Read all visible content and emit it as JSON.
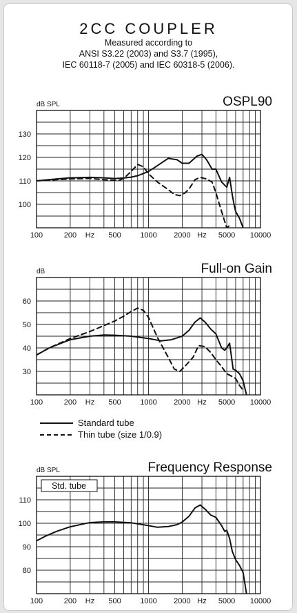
{
  "header": {
    "title": "2CC COUPLER",
    "lines": [
      "Measured according to",
      "ANSI S3.22 (2003) and S3.7 (1995),",
      "IEC 60118-7 (2005) and IEC 60318-5 (2006)."
    ]
  },
  "legend": {
    "solid": "Standard tube",
    "dashed": "Thin tube (size 1/0.9)"
  },
  "chart_data": [
    {
      "type": "line",
      "title": "OSPL90",
      "ylabel": "dB SPL",
      "xlabel": "Hz",
      "xscale": "log",
      "xlim": [
        100,
        10000
      ],
      "ylim": [
        90,
        140
      ],
      "xticks": [
        "100",
        "200",
        "Hz",
        "500",
        "1000",
        "2000",
        "Hz",
        "5000",
        "10000"
      ],
      "yticks": [
        100,
        110,
        120,
        130
      ],
      "series": [
        {
          "name": "Standard tube",
          "style": "solid",
          "x": [
            100,
            150,
            200,
            300,
            400,
            500,
            600,
            700,
            800,
            1000,
            1200,
            1500,
            1800,
            2000,
            2300,
            2700,
            3000,
            3300,
            3700,
            4000,
            4500,
            5000,
            5300,
            5600,
            5800,
            6000,
            6500,
            7000
          ],
          "y": [
            110,
            110.8,
            111.3,
            111.5,
            111.3,
            111,
            111.2,
            111.6,
            112.2,
            114,
            116.5,
            119.6,
            119,
            117.5,
            117.5,
            120.5,
            121.3,
            119,
            115,
            115,
            109.5,
            107.3,
            111.5,
            104,
            100,
            97,
            94,
            90
          ]
        },
        {
          "name": "Thin tube (size 1/0.9)",
          "style": "dashed",
          "x": [
            100,
            150,
            200,
            300,
            400,
            500,
            550,
            600,
            700,
            800,
            900,
            1000,
            1200,
            1500,
            1700,
            1900,
            2100,
            2300,
            2600,
            2900,
            3300,
            3700,
            4000,
            4300,
            4700,
            5000,
            5300,
            5500
          ],
          "y": [
            110,
            110.5,
            110.8,
            111,
            110.5,
            110.2,
            110.3,
            111,
            114,
            117,
            116,
            113,
            109.5,
            106.3,
            104.2,
            103.7,
            104.7,
            106.5,
            110.5,
            111.5,
            110.8,
            109.5,
            105,
            100,
            94,
            90,
            91,
            91
          ]
        }
      ]
    },
    {
      "type": "line",
      "title": "Full-on Gain",
      "ylabel": "dB",
      "xlabel": "Hz",
      "xscale": "log",
      "xlim": [
        100,
        10000
      ],
      "ylim": [
        20,
        70
      ],
      "xticks": [
        "100",
        "200",
        "Hz",
        "500",
        "1000",
        "2000",
        "Hz",
        "5000",
        "10000"
      ],
      "yticks": [
        30,
        40,
        50,
        60
      ],
      "series": [
        {
          "name": "Standard tube",
          "style": "solid",
          "x": [
            100,
            130,
            200,
            300,
            400,
            500,
            700,
            1000,
            1300,
            1600,
            2000,
            2300,
            2600,
            2900,
            3200,
            3600,
            4000,
            4500,
            4800,
            5000,
            5300,
            5700,
            6000,
            6500,
            7000,
            7500
          ],
          "y": [
            37,
            40,
            43.5,
            45,
            45.5,
            45.4,
            45,
            44,
            43,
            43.5,
            45,
            47.5,
            51,
            52.8,
            51,
            48,
            46,
            40,
            39,
            40,
            42,
            31,
            30.5,
            29,
            26,
            20
          ]
        },
        {
          "name": "Thin tube (size 1/0.9)",
          "style": "dashed",
          "x": [
            100,
            130,
            200,
            300,
            400,
            500,
            600,
            700,
            800,
            900,
            1000,
            1200,
            1500,
            1700,
            1900,
            2100,
            2500,
            2800,
            3200,
            3600,
            4000,
            4500,
            5000,
            5500,
            6000,
            6500,
            7000
          ],
          "y": [
            37,
            40,
            44,
            47,
            49.5,
            51.5,
            53.5,
            55.5,
            57,
            56,
            53,
            44.5,
            36,
            31,
            30,
            32,
            36,
            41,
            40.5,
            38,
            35,
            32,
            29,
            28,
            27,
            24,
            22
          ]
        }
      ]
    },
    {
      "type": "line",
      "title": "Frequency Response",
      "ylabel": "dB SPL",
      "xlabel": "Hz",
      "xscale": "log",
      "xlim": [
        100,
        10000
      ],
      "ylim": [
        70,
        120
      ],
      "xticks": [
        "100",
        "200",
        "Hz",
        "500",
        "1000",
        "2000",
        "Hz",
        "5000",
        "10000"
      ],
      "yticks": [
        80,
        90,
        100,
        110
      ],
      "annotations": [
        "Std. tube"
      ],
      "series": [
        {
          "name": "Standard tube",
          "style": "solid",
          "x": [
            100,
            120,
            150,
            200,
            300,
            400,
            500,
            700,
            1000,
            1200,
            1500,
            1800,
            2000,
            2300,
            2600,
            2900,
            3200,
            3600,
            4000,
            4500,
            4800,
            5000,
            5300,
            5600,
            6000,
            6500,
            7000,
            7500
          ],
          "y": [
            92.5,
            94.5,
            96.5,
            98.5,
            100.3,
            100.6,
            100.6,
            100.2,
            99,
            98.3,
            98.6,
            99.4,
            100.5,
            103,
            106.5,
            107.8,
            106,
            103.5,
            102.5,
            99,
            96.5,
            97,
            93.5,
            88,
            84.5,
            82,
            79,
            70
          ]
        }
      ]
    }
  ]
}
